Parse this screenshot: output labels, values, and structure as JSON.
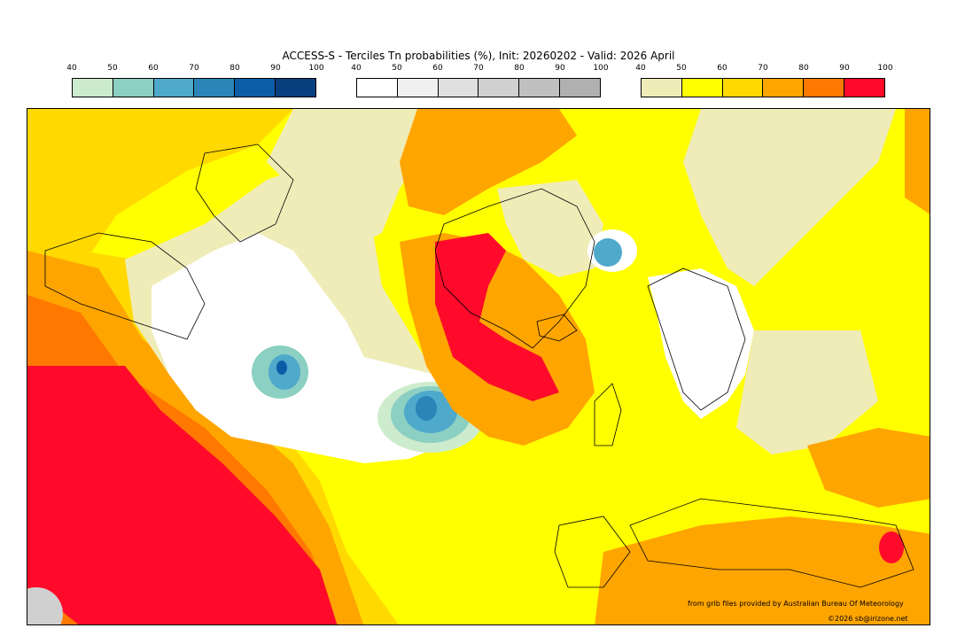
{
  "title": "ACCESS-S - Terciles Tn probabilities (%), Init: 20260202 - Valid: 2026 April",
  "colorbars": [
    {
      "name": "below-normal",
      "ticks": [
        "40",
        "50",
        "60",
        "70",
        "80",
        "90",
        "100"
      ],
      "colors": [
        "#cdeccd",
        "#8ccfc3",
        "#4ea9cb",
        "#2b85b9",
        "#0b5ea6",
        "#08407f"
      ]
    },
    {
      "name": "near-normal",
      "ticks": [
        "40",
        "50",
        "60",
        "70",
        "80",
        "90",
        "100"
      ],
      "colors": [
        "#ffffff",
        "#f0f0f0",
        "#e0e0e0",
        "#d0d0d0",
        "#c0c0c0",
        "#b0b0b0"
      ]
    },
    {
      "name": "above-normal",
      "ticks": [
        "40",
        "50",
        "60",
        "70",
        "80",
        "90",
        "100"
      ],
      "colors": [
        "#f0ecb8",
        "#ffff00",
        "#ffd900",
        "#ffa500",
        "#ff7800",
        "#ff0a2a"
      ]
    }
  ],
  "credit": "from grib files provided by Australian Bureau Of Meteorology",
  "copyright": "©2026 sb@irizone.net"
}
